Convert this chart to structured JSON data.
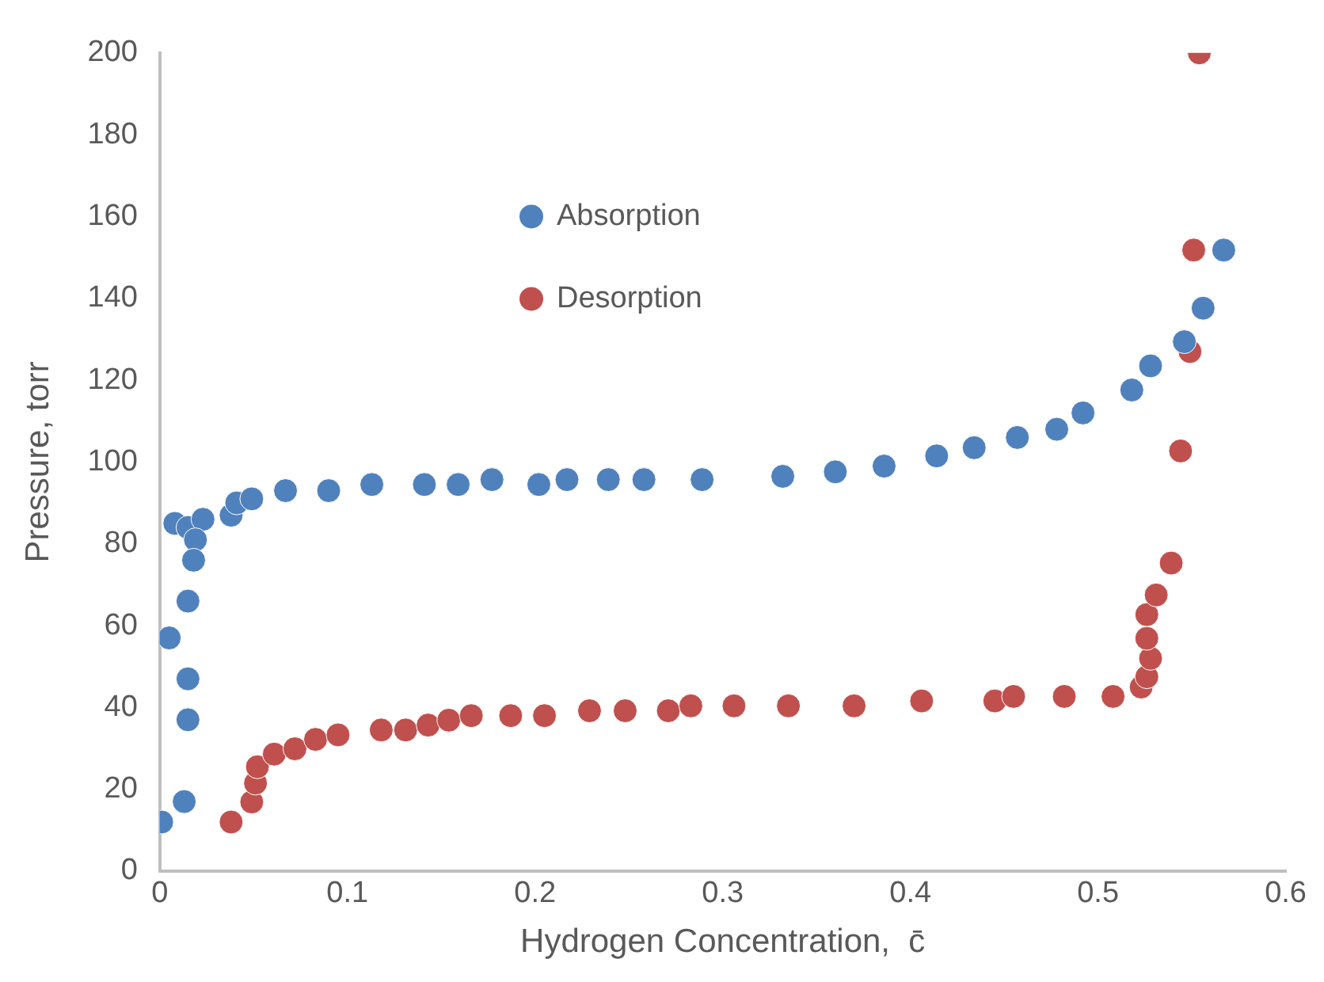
{
  "chart_data": {
    "type": "scatter",
    "xlabel": "Hydrogen Concentration,  c̄",
    "ylabel": "Pressure, torr",
    "xlim": [
      0,
      0.6
    ],
    "xticks": [
      0,
      0.1,
      0.2,
      0.3,
      0.4,
      0.5,
      0.6
    ],
    "ylim": [
      0,
      200
    ],
    "yticks": [
      0,
      20,
      40,
      60,
      80,
      100,
      120,
      140,
      160,
      180,
      200
    ],
    "grid": false,
    "legend": "top",
    "marker": "circle",
    "series": [
      {
        "name": "Absorption",
        "color": "#4f81bd",
        "x": [
          0.001,
          0.013,
          0.005,
          0.015,
          0.015,
          0.015,
          0.008,
          0.015,
          0.023,
          0.019,
          0.018,
          0.038,
          0.041,
          0.049,
          0.067,
          0.09,
          0.113,
          0.141,
          0.159,
          0.177,
          0.202,
          0.217,
          0.239,
          0.258,
          0.289,
          0.332,
          0.36,
          0.386,
          0.414,
          0.434,
          0.457,
          0.478,
          0.492,
          0.518,
          0.528,
          0.546,
          0.556,
          0.567
        ],
        "values": [
          12,
          17,
          57,
          66,
          47,
          37,
          85,
          84,
          86,
          81,
          76,
          87,
          90,
          91,
          93,
          93,
          94.5,
          94.5,
          94.5,
          95.7,
          94.5,
          95.7,
          95.7,
          95.7,
          95.7,
          96.5,
          97.6,
          99,
          101.5,
          103.5,
          106,
          108,
          112,
          117.6,
          123.5,
          129.4,
          137.6,
          151.8
        ]
      },
      {
        "name": "Desorption",
        "color": "#c0504d",
        "x": [
          0.038,
          0.049,
          0.051,
          0.052,
          0.061,
          0.072,
          0.083,
          0.095,
          0.118,
          0.131,
          0.143,
          0.154,
          0.166,
          0.187,
          0.205,
          0.229,
          0.248,
          0.271,
          0.283,
          0.306,
          0.335,
          0.37,
          0.406,
          0.445,
          0.455,
          0.482,
          0.508,
          0.523,
          0.526,
          0.528,
          0.526,
          0.526,
          0.531,
          0.539,
          0.544,
          0.549,
          0.551,
          0.554
        ],
        "values": [
          12,
          16.9,
          21.5,
          25.5,
          28.6,
          29.9,
          32.2,
          33.3,
          34.5,
          34.5,
          35.7,
          36.9,
          38,
          38,
          38,
          39.2,
          39.2,
          39.2,
          40.4,
          40.4,
          40.4,
          40.4,
          41.6,
          41.6,
          42.7,
          42.7,
          42.7,
          45,
          47.5,
          52,
          56.9,
          62.7,
          67.5,
          75.3,
          102.7,
          127,
          151.8,
          200
        ]
      }
    ]
  }
}
